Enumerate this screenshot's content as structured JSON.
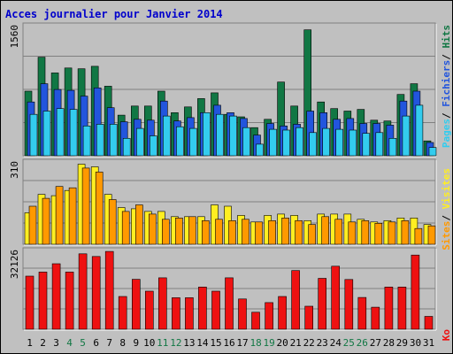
{
  "title": "Acces journalier pour Janvier 2014",
  "colors": {
    "pages": "#33ccee",
    "fichiers": "#2255dd",
    "hits": "#117744",
    "visites": "#ffee22",
    "sites": "#ff9900",
    "ko": "#ee1111",
    "weekend": "#117744"
  },
  "chart_data": [
    {
      "type": "bar",
      "ymax_label": "1560",
      "ylim": [
        0,
        1560
      ],
      "legend": [
        "Pages",
        "Fichiers",
        "Hits"
      ],
      "grid": true,
      "categories": [
        "1",
        "2",
        "3",
        "4",
        "5",
        "6",
        "7",
        "8",
        "9",
        "10",
        "11",
        "12",
        "13",
        "14",
        "15",
        "16",
        "17",
        "18",
        "19",
        "20",
        "21",
        "22",
        "23",
        "24",
        "25",
        "26",
        "27",
        "28",
        "29",
        "30",
        "31"
      ],
      "weekend_days": [
        "4",
        "5",
        "11",
        "12",
        "18",
        "19",
        "25",
        "26"
      ],
      "series": [
        {
          "name": "Hits",
          "values": [
            780,
            1190,
            1000,
            1060,
            1050,
            1080,
            840,
            490,
            600,
            600,
            780,
            520,
            590,
            690,
            760,
            500,
            470,
            340,
            440,
            890,
            600,
            1520,
            650,
            570,
            540,
            560,
            430,
            420,
            740,
            870,
            180
          ]
        },
        {
          "name": "Fichiers",
          "values": [
            650,
            870,
            800,
            790,
            720,
            820,
            580,
            410,
            440,
            430,
            660,
            420,
            460,
            520,
            610,
            520,
            450,
            250,
            390,
            360,
            380,
            540,
            520,
            440,
            450,
            390,
            390,
            370,
            660,
            780,
            160
          ]
        },
        {
          "name": "Pages",
          "values": [
            500,
            540,
            570,
            560,
            360,
            380,
            380,
            210,
            330,
            240,
            480,
            350,
            330,
            520,
            500,
            480,
            340,
            140,
            320,
            310,
            340,
            280,
            330,
            320,
            310,
            270,
            280,
            210,
            480,
            610,
            100
          ]
        }
      ]
    },
    {
      "type": "bar",
      "ymax_label": "310",
      "ylim": [
        0,
        310
      ],
      "legend": [
        "Sites",
        "/",
        "Visites"
      ],
      "grid": true,
      "categories": [
        "1",
        "2",
        "3",
        "4",
        "5",
        "6",
        "7",
        "8",
        "9",
        "10",
        "11",
        "12",
        "13",
        "14",
        "15",
        "16",
        "17",
        "18",
        "19",
        "20",
        "21",
        "22",
        "23",
        "24",
        "25",
        "26",
        "27",
        "28",
        "29",
        "30",
        "31"
      ],
      "series": [
        {
          "name": "Visites",
          "values": [
            120,
            190,
            185,
            205,
            305,
            295,
            190,
            140,
            135,
            125,
            125,
            105,
            105,
            105,
            150,
            145,
            110,
            85,
            110,
            115,
            110,
            90,
            115,
            115,
            115,
            95,
            85,
            90,
            100,
            100,
            75
          ]
        },
        {
          "name": "Sites",
          "values": [
            145,
            175,
            220,
            215,
            290,
            275,
            170,
            125,
            150,
            115,
            95,
            100,
            105,
            90,
            95,
            90,
            95,
            85,
            90,
            100,
            90,
            75,
            105,
            95,
            85,
            90,
            80,
            85,
            90,
            60,
            70
          ]
        }
      ]
    },
    {
      "type": "bar",
      "ymax_label": "32126",
      "ylim": [
        0,
        32126
      ],
      "legend": [
        "Ko"
      ],
      "grid": true,
      "categories": [
        "1",
        "2",
        "3",
        "4",
        "5",
        "6",
        "7",
        "8",
        "9",
        "10",
        "11",
        "12",
        "13",
        "14",
        "15",
        "16",
        "17",
        "18",
        "19",
        "20",
        "21",
        "22",
        "23",
        "24",
        "25",
        "26",
        "27",
        "28",
        "29",
        "30",
        "31"
      ],
      "series": [
        {
          "name": "Ko",
          "values": [
            21900,
            23600,
            27000,
            23600,
            31100,
            30000,
            32100,
            13500,
            20600,
            15700,
            21200,
            13000,
            13000,
            17400,
            15700,
            21200,
            12500,
            7000,
            11000,
            13500,
            24200,
            9500,
            21000,
            26000,
            20500,
            13100,
            9100,
            17400,
            17400,
            30600,
            5300
          ]
        }
      ]
    }
  ]
}
